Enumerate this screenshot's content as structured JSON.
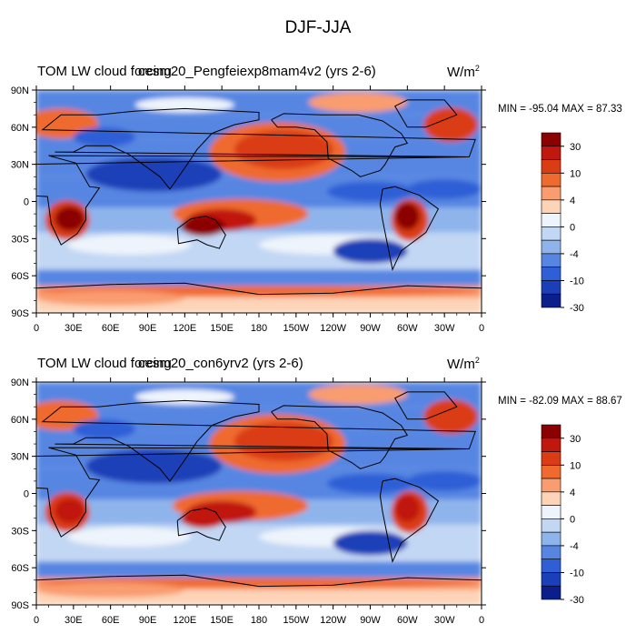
{
  "title": "DJF-JJA",
  "colorbar": {
    "colors": [
      "#8b0000",
      "#c0170e",
      "#da3d14",
      "#ef6a2e",
      "#f99c70",
      "#fdd4b8",
      "#eef4fb",
      "#c2d7f4",
      "#8fb4ec",
      "#5686e2",
      "#2f5fd6",
      "#1b3fb8",
      "#0b1f8c"
    ],
    "labels": [
      "30",
      "10",
      "4",
      "0",
      "-4",
      "-10",
      "-30"
    ]
  },
  "axes": {
    "lat_labels": [
      "90N",
      "60N",
      "30N",
      "0",
      "30S",
      "60S",
      "90S"
    ],
    "lon_labels": [
      "0",
      "30E",
      "60E",
      "90E",
      "120E",
      "150E",
      "180",
      "150W",
      "120W",
      "90W",
      "60W",
      "30W",
      "0"
    ]
  },
  "panels": [
    {
      "id": "top",
      "left_title": "TOM LW cloud forcing",
      "center_title": "cesm20_Pengfeiexp8mam4v2 (yrs 2-6)",
      "units": "W/m",
      "units_sup": "2",
      "minmax": "MIN = -95.04 MAX =  87.33"
    },
    {
      "id": "bottom",
      "left_title": "TOM LW cloud forcing",
      "center_title": "cesm20_con6yrv2 (yrs 2-6)",
      "units": "W/m",
      "units_sup": "2",
      "minmax": "MIN = -82.09 MAX =  88.67"
    }
  ]
}
